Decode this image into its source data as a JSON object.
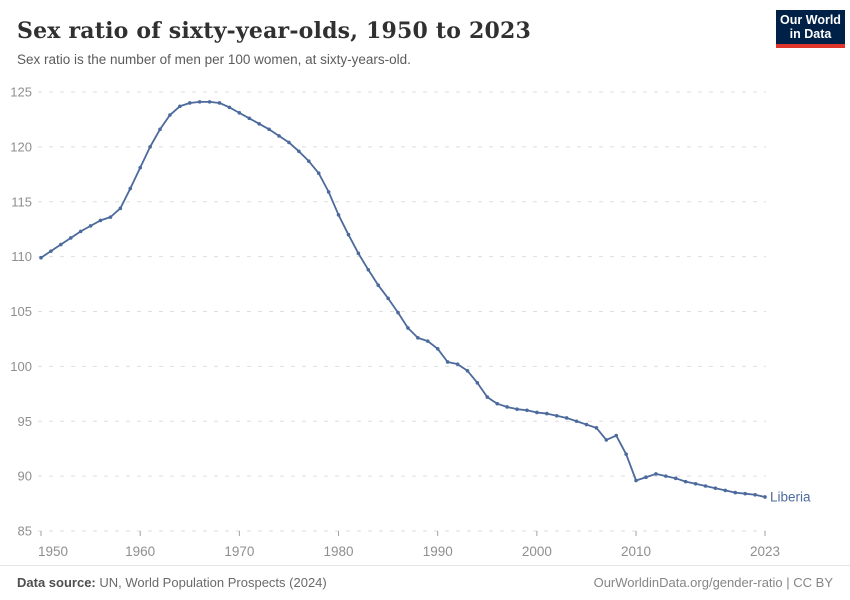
{
  "header": {
    "title": "Sex ratio of sixty-year-olds, 1950 to 2023",
    "subtitle": "Sex ratio is the number of men per 100 women, at sixty-years-old."
  },
  "logo": {
    "line1": "Our World",
    "line2": "in Data",
    "bg_color": "#002147",
    "accent_color": "#E0352B"
  },
  "chart_data": {
    "type": "line",
    "title": "Sex ratio of sixty-year-olds, 1950 to 2023",
    "subtitle": "Sex ratio is the number of men per 100 women, at sixty-years-old.",
    "entity_label": "Liberia",
    "xlim": [
      1950,
      2023
    ],
    "ylim": [
      85,
      125
    ],
    "yticks": [
      85,
      90,
      95,
      100,
      105,
      110,
      115,
      120,
      125
    ],
    "xticks": [
      1950,
      1960,
      1970,
      1980,
      1990,
      2000,
      2010,
      2023
    ],
    "grid": "horizontal-dashed",
    "legend_position": "line-end-label",
    "years": [
      1950,
      1951,
      1952,
      1953,
      1954,
      1955,
      1956,
      1957,
      1958,
      1959,
      1960,
      1961,
      1962,
      1963,
      1964,
      1965,
      1966,
      1967,
      1968,
      1969,
      1970,
      1971,
      1972,
      1973,
      1974,
      1975,
      1976,
      1977,
      1978,
      1979,
      1980,
      1981,
      1982,
      1983,
      1984,
      1985,
      1986,
      1987,
      1988,
      1989,
      1990,
      1991,
      1992,
      1993,
      1994,
      1995,
      1996,
      1997,
      1998,
      1999,
      2000,
      2001,
      2002,
      2003,
      2004,
      2005,
      2006,
      2007,
      2008,
      2009,
      2010,
      2011,
      2012,
      2013,
      2014,
      2015,
      2016,
      2017,
      2018,
      2019,
      2020,
      2021,
      2022,
      2023
    ],
    "series": [
      {
        "name": "Liberia",
        "color": "#4C6A9C",
        "values": [
          109.9,
          110.5,
          111.1,
          111.7,
          112.3,
          112.8,
          113.3,
          113.6,
          114.4,
          116.2,
          118.1,
          120.0,
          121.6,
          122.9,
          123.7,
          124.0,
          124.1,
          124.1,
          124.0,
          123.6,
          123.1,
          122.6,
          122.1,
          121.6,
          121.0,
          120.4,
          119.6,
          118.7,
          117.6,
          115.9,
          113.8,
          112.0,
          110.3,
          108.8,
          107.4,
          106.2,
          104.9,
          103.5,
          102.6,
          102.3,
          101.6,
          100.4,
          100.2,
          99.6,
          98.5,
          97.2,
          96.6,
          96.3,
          96.1,
          96.0,
          95.8,
          95.7,
          95.5,
          95.3,
          95.0,
          94.7,
          94.4,
          93.3,
          93.7,
          92.0,
          89.6,
          89.9,
          90.2,
          90.0,
          89.8,
          89.5,
          89.3,
          89.1,
          88.9,
          88.7,
          88.5,
          88.4,
          88.3,
          88.1
        ]
      }
    ]
  },
  "style": {
    "gridline_color": "#dedede",
    "tick_label_color": "#8f8f8f",
    "axis_tick_color": "#a0a0a0"
  },
  "footer": {
    "source_label": "Data source:",
    "source_text": " UN, World Population Prospects (2024)",
    "credit_text": "OurWorldinData.org/gender-ratio | CC BY"
  }
}
